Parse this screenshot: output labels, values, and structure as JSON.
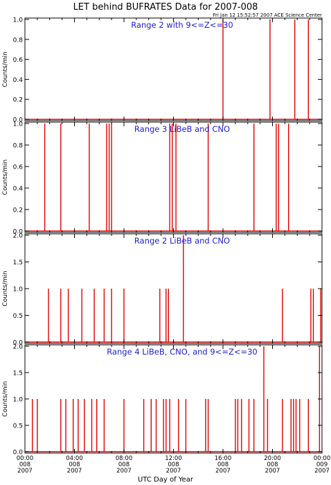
{
  "figure": {
    "title": "LET behind BUFRATES Data for 2007-008",
    "stamp": "Fri Jan 12 15:52:57 2007 ACE Science Center",
    "xlabel": "UTC Day of Year"
  },
  "colors": {
    "trace": "#e00000",
    "panel_label": "#2020cc",
    "axis": "#000000"
  },
  "chart_data": [
    {
      "type": "line",
      "title": "Range 2 with 9<=Z<=30",
      "ylabel": "Counts/min",
      "xlim": [
        0,
        24
      ],
      "ylim": [
        0,
        1.0
      ],
      "yticks": [
        "0.0",
        "0.2",
        "0.4",
        "0.6",
        "0.8",
        "1.0"
      ],
      "yvals": [
        0,
        0.2,
        0.4,
        0.6,
        0.8,
        1.0
      ],
      "spikes": [
        [
          16.0,
          1.0
        ],
        [
          19.8,
          1.0
        ],
        [
          21.8,
          1.0
        ],
        [
          22.9,
          1.0
        ]
      ]
    },
    {
      "type": "line",
      "title": "Range 3 LiBeB and CNO",
      "ylabel": "Counts/min",
      "xlim": [
        0,
        24
      ],
      "ylim": [
        0,
        1.0
      ],
      "yticks": [
        "0.0",
        "0.2",
        "0.4",
        "0.6",
        "0.8",
        "1.0"
      ],
      "yvals": [
        0,
        0.2,
        0.4,
        0.6,
        0.8,
        1.0
      ],
      "spikes": [
        [
          1.6,
          1.0
        ],
        [
          2.9,
          1.0
        ],
        [
          5.2,
          1.0
        ],
        [
          6.6,
          1.0
        ],
        [
          6.8,
          1.0
        ],
        [
          7.0,
          1.0
        ],
        [
          11.7,
          1.0
        ],
        [
          11.9,
          1.0
        ],
        [
          12.2,
          1.0
        ],
        [
          14.8,
          1.0
        ],
        [
          18.5,
          1.0
        ],
        [
          20.3,
          1.0
        ],
        [
          20.5,
          1.0
        ],
        [
          21.3,
          1.0
        ]
      ]
    },
    {
      "type": "line",
      "title": "Range 2 LiBeB and CNO",
      "ylabel": "Counts/min",
      "xlim": [
        0,
        24
      ],
      "ylim": [
        0,
        2.0
      ],
      "yticks": [
        "0.0",
        "0.5",
        "1.0",
        "1.5",
        "2.0"
      ],
      "yvals": [
        0,
        0.5,
        1.0,
        1.5,
        2.0
      ],
      "spikes": [
        [
          1.9,
          1.0
        ],
        [
          2.9,
          1.0
        ],
        [
          3.5,
          1.0
        ],
        [
          4.6,
          1.0
        ],
        [
          5.6,
          1.0
        ],
        [
          6.4,
          1.0
        ],
        [
          7.0,
          1.0
        ],
        [
          8.0,
          1.0
        ],
        [
          10.9,
          1.0
        ],
        [
          11.4,
          1.0
        ],
        [
          11.6,
          1.0
        ],
        [
          12.8,
          2.0
        ],
        [
          20.8,
          1.0
        ],
        [
          23.1,
          1.0
        ],
        [
          23.3,
          1.0
        ],
        [
          23.9,
          1.0
        ]
      ]
    },
    {
      "type": "line",
      "title": "Range 4 LiBeB, CNO, and 9<=Z<=30",
      "ylabel": "Counts/min",
      "xlim": [
        0,
        24
      ],
      "ylim": [
        0,
        2.0
      ],
      "yticks": [
        "0.0",
        "0.5",
        "1.0",
        "1.5",
        "2.0"
      ],
      "yvals": [
        0,
        0.5,
        1.0,
        1.5,
        2.0
      ],
      "spikes": [
        [
          0.6,
          1.0
        ],
        [
          1.0,
          1.0
        ],
        [
          2.9,
          1.0
        ],
        [
          3.3,
          1.0
        ],
        [
          3.9,
          1.0
        ],
        [
          4.3,
          1.0
        ],
        [
          4.8,
          1.0
        ],
        [
          5.4,
          1.0
        ],
        [
          5.8,
          1.0
        ],
        [
          6.4,
          1.0
        ],
        [
          8.0,
          1.0
        ],
        [
          9.6,
          1.0
        ],
        [
          10.2,
          1.0
        ],
        [
          10.6,
          1.0
        ],
        [
          11.2,
          1.0
        ],
        [
          11.4,
          1.0
        ],
        [
          11.7,
          1.0
        ],
        [
          12.4,
          1.0
        ],
        [
          13.0,
          1.0
        ],
        [
          14.6,
          1.0
        ],
        [
          14.8,
          1.0
        ],
        [
          17.0,
          1.0
        ],
        [
          17.2,
          1.0
        ],
        [
          17.5,
          1.0
        ],
        [
          18.1,
          1.0
        ],
        [
          18.5,
          1.0
        ],
        [
          19.3,
          2.0
        ],
        [
          19.6,
          1.0
        ],
        [
          20.8,
          1.0
        ],
        [
          21.5,
          1.0
        ],
        [
          21.7,
          1.0
        ],
        [
          21.9,
          1.0
        ],
        [
          22.2,
          1.0
        ],
        [
          22.9,
          1.0
        ],
        [
          23.8,
          2.0
        ]
      ]
    }
  ],
  "xticks": [
    {
      "x": 0,
      "lines": [
        "00:00",
        "008",
        "2007"
      ]
    },
    {
      "x": 4,
      "lines": [
        "04:00",
        "008",
        "2007"
      ]
    },
    {
      "x": 8,
      "lines": [
        "08:00",
        "008",
        "2007"
      ]
    },
    {
      "x": 12,
      "lines": [
        "12:00",
        "008",
        "2007"
      ]
    },
    {
      "x": 16,
      "lines": [
        "16:00",
        "008",
        "2007"
      ]
    },
    {
      "x": 20,
      "lines": [
        "20:00",
        "008",
        "2007"
      ]
    },
    {
      "x": 24,
      "lines": [
        "00:00",
        "009",
        "2007"
      ]
    }
  ]
}
